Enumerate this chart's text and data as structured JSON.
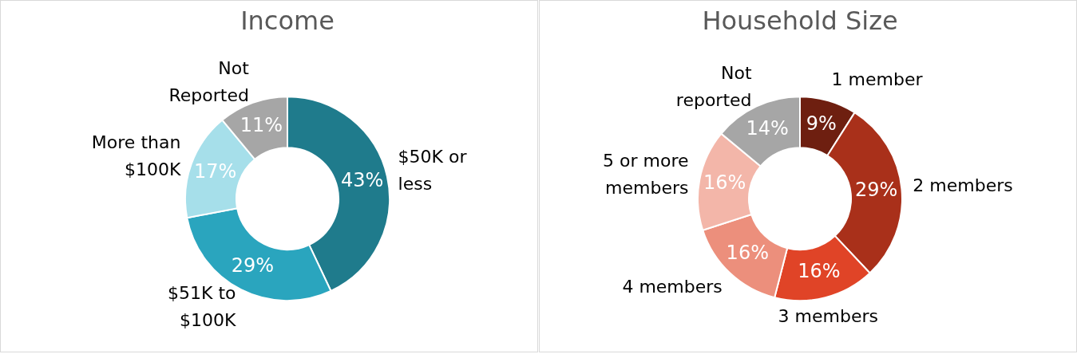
{
  "chart_data": [
    {
      "type": "donut",
      "title": "Income",
      "categories": [
        "$50K or\nless",
        "$51K to\n$100K",
        "More than\n$100K",
        "Not\nReported"
      ],
      "values": [
        43,
        29,
        17,
        11
      ],
      "value_labels": [
        "43%",
        "29%",
        "17%",
        "11%"
      ],
      "colors": [
        "#1f7b8c",
        "#2aa5be",
        "#a6dfea",
        "#a6a6a6"
      ]
    },
    {
      "type": "donut",
      "title": "Household Size",
      "categories": [
        "1 member",
        "2 members",
        "3 members",
        "4 members",
        "5 or more\nmembers",
        "Not\nreported"
      ],
      "values": [
        9,
        29,
        16,
        16,
        16,
        14
      ],
      "value_labels": [
        "9%",
        "29%",
        "16%",
        "16%",
        "16%",
        "14%"
      ],
      "colors": [
        "#6e1f10",
        "#a9301a",
        "#e04427",
        "#ec8f7c",
        "#f3b6a9",
        "#a6a6a6"
      ]
    }
  ]
}
